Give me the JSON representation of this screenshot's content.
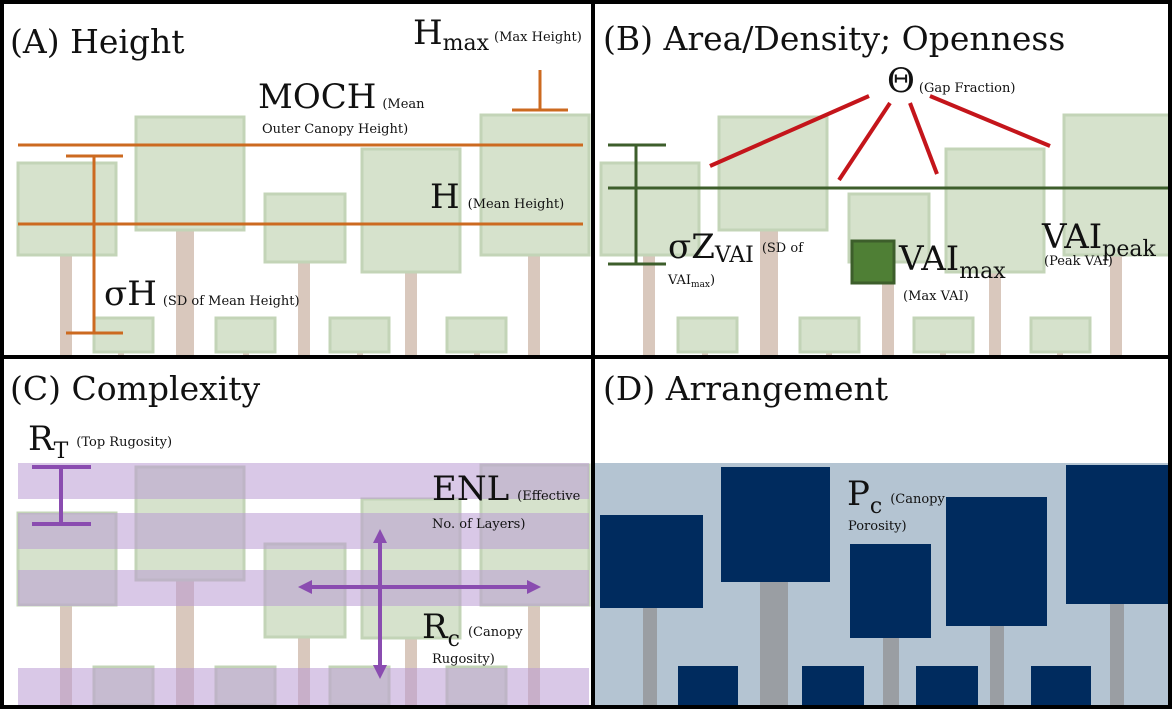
{
  "panels": {
    "a": {
      "title": "(A) Height",
      "hmax": {
        "sym": "H",
        "sub": "max",
        "desc": "(Max Height)"
      },
      "moch": {
        "sym": "MOCH",
        "desc1": "(Mean",
        "desc2": "Outer Canopy Height)"
      },
      "h": {
        "sym": "H",
        "desc": "(Mean Height)"
      },
      "sigma_h": {
        "sym": "σH",
        "desc": "(SD of Mean Height)"
      }
    },
    "b": {
      "title": "(B) Area/Density; Openness",
      "theta": {
        "sym": "Θ",
        "desc": "(Gap Fraction)"
      },
      "sigma_z": {
        "sym": "σZ",
        "sub": "VAI",
        "desc1": "(SD of",
        "desc2": "VAI",
        "desc2_sub": "max",
        "desc2_end": ")"
      },
      "vai_max": {
        "sym": "VAI",
        "sub": "max",
        "desc": "(Max VAI)"
      },
      "vai_peak": {
        "sym": "VAI",
        "sub": "peak",
        "desc": "(Peak VAI)"
      }
    },
    "c": {
      "title": "(C) Complexity",
      "rt": {
        "sym": "R",
        "sub": "T",
        "desc": "(Top Rugosity)"
      },
      "enl": {
        "sym": "ENL",
        "desc1": "(Effective",
        "desc2": "No. of Layers)"
      },
      "rc": {
        "sym": "R",
        "sub": "c",
        "desc1": "(Canopy",
        "desc2": "Rugosity)"
      }
    },
    "d": {
      "title": "(D) Arrangement",
      "pc": {
        "sym": "P",
        "sub": "c",
        "desc1": "(Canopy",
        "desc2": "Porosity)"
      }
    }
  },
  "colors": {
    "border": "#000000",
    "trunk": "#d9c8bd",
    "crown": "#d6e2cc",
    "crown_stroke": "#c3d4b7",
    "height_lines": "#cc6a20",
    "openness_lines": "#c4151b",
    "density_lines": "#3d5e2b",
    "vai_max_box": "#4f7f35",
    "complexity": "#8a4cb0",
    "layer_band": "#b99ad4",
    "porosity_bg": "#b4c4d2",
    "porosity_crown": "#002b5e",
    "porosity_trunk": "#9a9ea3"
  }
}
